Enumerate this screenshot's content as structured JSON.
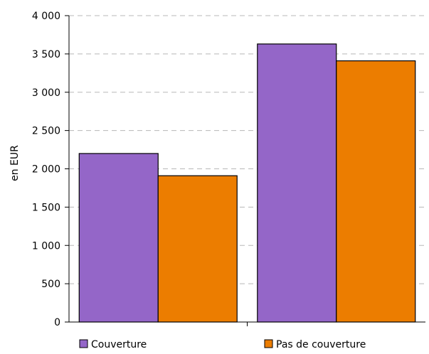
{
  "chart_data": {
    "type": "bar",
    "categories": [
      "",
      ""
    ],
    "series": [
      {
        "name": "Couverture",
        "values": [
          2200,
          3630
        ],
        "color": "#9466c8"
      },
      {
        "name": "Pas de couverture",
        "values": [
          1910,
          3410
        ],
        "color": "#ec7d00"
      }
    ],
    "title": "",
    "xlabel": "",
    "ylabel": "en EUR",
    "ylim": [
      0,
      4000
    ],
    "yticks": [
      0,
      500,
      1000,
      1500,
      2000,
      2500,
      3000,
      3500,
      4000
    ],
    "ytick_labels": [
      "0",
      "500",
      "1 000",
      "1 500",
      "2 000",
      "2 500",
      "3 000",
      "3 500",
      "4 000"
    ],
    "grid": "horizontal-dashed",
    "legend_position": "bottom"
  }
}
